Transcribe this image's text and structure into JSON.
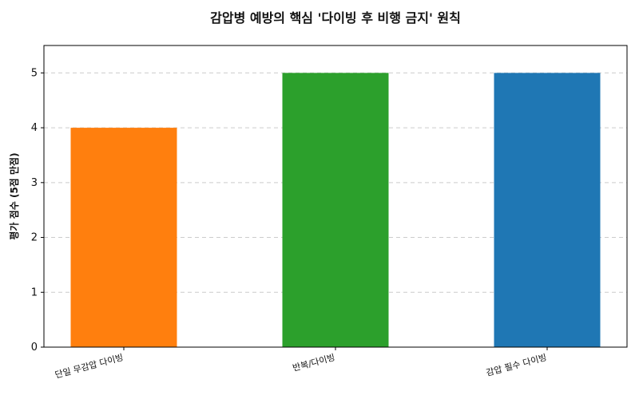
{
  "chart_data": {
    "type": "bar",
    "title": "감압병 예방의 핵심 '다이빙 후 비행 금지' 원칙",
    "xlabel": "",
    "ylabel": "평가 점수 (5점 만점)",
    "categories": [
      "단일 무감압 다이빙",
      "반복/다이빙",
      "감압 필수 다이빙"
    ],
    "values": [
      4,
      5,
      5
    ],
    "colors": [
      "#ff7f0e",
      "#2ca02c",
      "#1f77b4"
    ],
    "ylim": [
      0,
      5.5
    ],
    "yticks": [
      0,
      1,
      2,
      3,
      4,
      5
    ],
    "grid": true,
    "legend": "none"
  }
}
